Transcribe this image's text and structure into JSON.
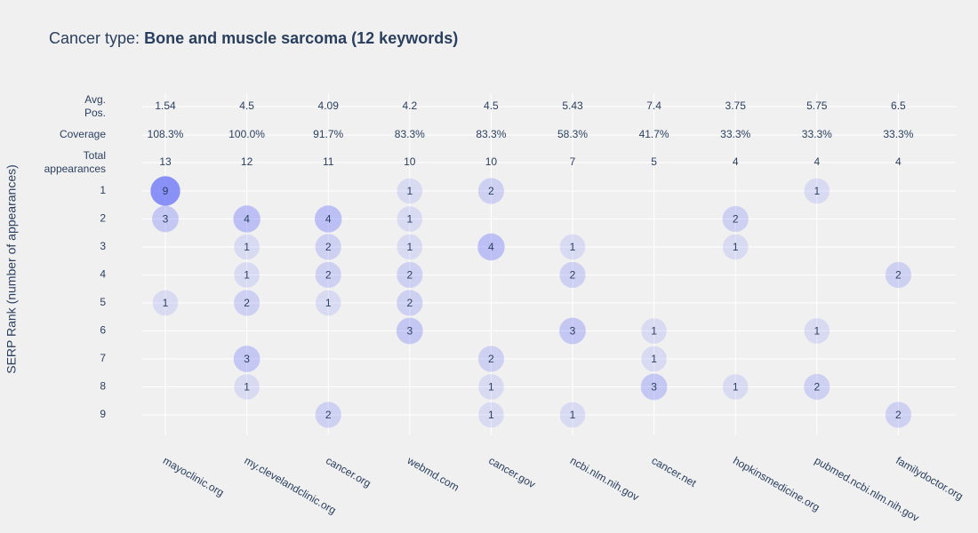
{
  "chart_data": {
    "type": "bubble",
    "title": {
      "prefix": "Cancer type:",
      "main": "Bone and muscle sarcoma (12 keywords)"
    },
    "y_label": "SERP Rank (number of appearances)",
    "color": "#636efa",
    "grid": true,
    "categories": [
      "mayoclinic.org",
      "my.clevelandclinic.org",
      "cancer.org",
      "webmd.com",
      "cancer.gov",
      "ncbi.nlm.nih.gov",
      "cancer.net",
      "hopkinsmedicine.org",
      "pubmed.ncbi.nlm.nih.gov",
      "familydoctor.org"
    ],
    "summary": [
      {
        "name": "Avg. Pos.",
        "values": [
          1.54,
          4.5,
          4.09,
          4.2,
          4.5,
          5.43,
          7.4,
          3.75,
          5.75,
          6.5
        ]
      },
      {
        "name": "Coverage",
        "values": [
          108.3,
          100.0,
          91.7,
          83.3,
          83.3,
          58.3,
          41.7,
          33.3,
          33.3,
          33.3
        ],
        "value_labels": [
          "108.3%",
          "100.0%",
          "91.7%",
          "83.3%",
          "83.3%",
          "58.3%",
          "41.7%",
          "33.3%",
          "33.3%",
          "33.3%"
        ]
      },
      {
        "name": "Total appearances",
        "values": [
          13,
          12,
          11,
          10,
          10,
          7,
          5,
          4,
          4,
          4
        ]
      }
    ],
    "series": [
      {
        "name": 1,
        "values": [
          9,
          null,
          null,
          1,
          2,
          null,
          null,
          null,
          1,
          null
        ]
      },
      {
        "name": 2,
        "values": [
          3,
          4,
          4,
          1,
          null,
          null,
          null,
          2,
          null,
          null
        ]
      },
      {
        "name": 3,
        "values": [
          null,
          1,
          2,
          1,
          4,
          1,
          null,
          1,
          null,
          null
        ]
      },
      {
        "name": 4,
        "values": [
          null,
          1,
          2,
          2,
          null,
          2,
          null,
          null,
          null,
          2
        ]
      },
      {
        "name": 5,
        "values": [
          1,
          2,
          1,
          2,
          null,
          null,
          null,
          null,
          null,
          null
        ]
      },
      {
        "name": 6,
        "values": [
          null,
          null,
          null,
          3,
          null,
          3,
          1,
          null,
          1,
          null
        ]
      },
      {
        "name": 7,
        "values": [
          null,
          3,
          null,
          null,
          2,
          null,
          1,
          null,
          null,
          null
        ]
      },
      {
        "name": 8,
        "values": [
          null,
          1,
          null,
          null,
          1,
          null,
          3,
          1,
          2,
          null
        ]
      },
      {
        "name": 9,
        "values": [
          null,
          null,
          2,
          null,
          1,
          1,
          null,
          null,
          null,
          2
        ]
      }
    ]
  }
}
